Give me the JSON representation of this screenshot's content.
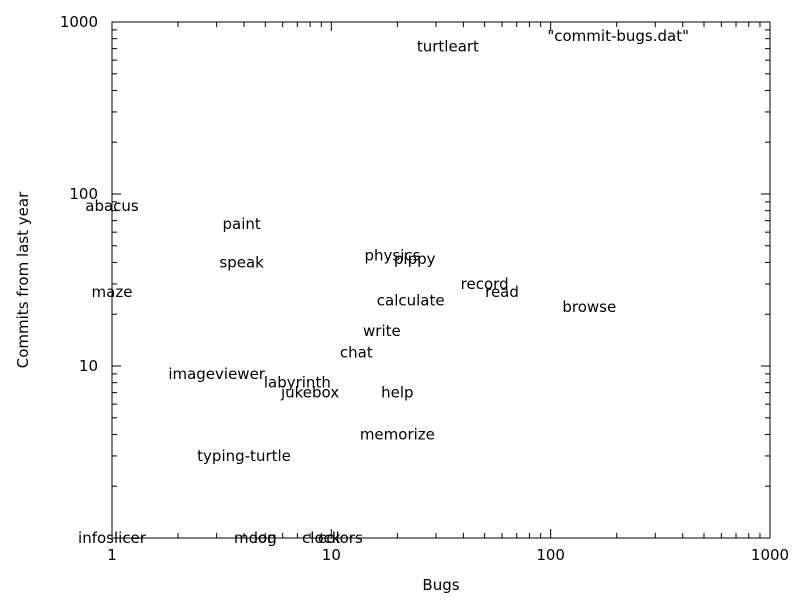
{
  "chart_data": {
    "type": "scatter",
    "title": "",
    "xlabel": "Bugs",
    "ylabel": "Commits from last year",
    "xscale": "log",
    "yscale": "log",
    "xlim": [
      1,
      1000
    ],
    "ylim": [
      1,
      1000
    ],
    "xticks": [
      1,
      10,
      100,
      1000
    ],
    "yticks": [
      10,
      100,
      1000
    ],
    "grid": false,
    "legend": {
      "label": "\"commit-bugs.dat\"",
      "placement": "top-right"
    },
    "series": [
      {
        "name": "\"commit-bugs.dat\"",
        "marker": "text-label",
        "points": [
          {
            "label": "turtleart",
            "x": 34,
            "y": 720
          },
          {
            "label": "abacus",
            "x": 1,
            "y": 85
          },
          {
            "label": "paint",
            "x": 3.9,
            "y": 67
          },
          {
            "label": "speak",
            "x": 3.9,
            "y": 40
          },
          {
            "label": "physics",
            "x": 19,
            "y": 44
          },
          {
            "label": "pippy",
            "x": 24,
            "y": 42
          },
          {
            "label": "record",
            "x": 50,
            "y": 30
          },
          {
            "label": "read",
            "x": 60,
            "y": 27
          },
          {
            "label": "maze",
            "x": 1,
            "y": 27
          },
          {
            "label": "calculate",
            "x": 23,
            "y": 24
          },
          {
            "label": "browse",
            "x": 150,
            "y": 22
          },
          {
            "label": "write",
            "x": 17,
            "y": 16
          },
          {
            "label": "chat",
            "x": 13,
            "y": 12
          },
          {
            "label": "imageviewer",
            "x": 3,
            "y": 9
          },
          {
            "label": "labyrinth",
            "x": 7,
            "y": 8
          },
          {
            "label": "jukebox",
            "x": 8,
            "y": 7
          },
          {
            "label": "help",
            "x": 20,
            "y": 7
          },
          {
            "label": "memorize",
            "x": 20,
            "y": 4
          },
          {
            "label": "typing-turtle",
            "x": 4,
            "y": 3
          },
          {
            "label": "infoslicer",
            "x": 1,
            "y": 1
          },
          {
            "label": "moon",
            "x": 4.5,
            "y": 1
          },
          {
            "label": "log",
            "x": 5,
            "y": 1
          },
          {
            "label": "clock",
            "x": 9,
            "y": 1
          },
          {
            "label": "colors",
            "x": 11,
            "y": 1
          }
        ]
      }
    ]
  }
}
